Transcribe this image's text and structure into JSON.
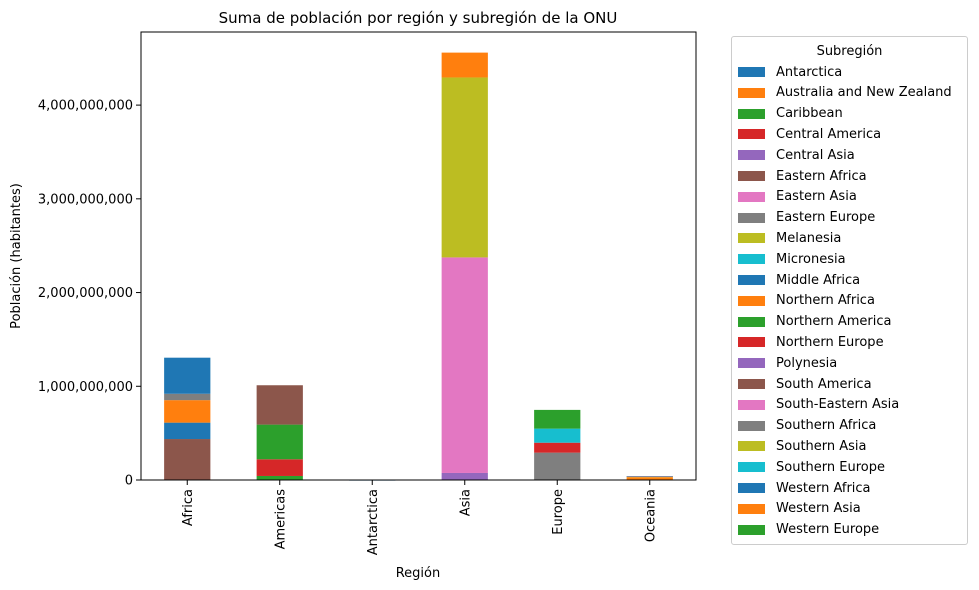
{
  "chart_data": {
    "type": "bar",
    "stacked": true,
    "title": "Suma de población por región y subregión de la ONU",
    "xlabel": "Región",
    "ylabel": "Población (habitantes)",
    "ylim": [
      0,
      4780000000
    ],
    "yticks": [
      0,
      1000000000,
      2000000000,
      3000000000,
      4000000000
    ],
    "ytick_labels": [
      "0",
      "1,000,000,000",
      "2,000,000,000",
      "3,000,000,000",
      "4,000,000,000"
    ],
    "categories": [
      "Africa",
      "Americas",
      "Antarctica",
      "Asia",
      "Europe",
      "Oceania"
    ],
    "legend_title": "Subregión",
    "legend_position": "outside-right",
    "grid": false,
    "series": [
      {
        "name": "Antarctica",
        "color": "#1f77b4",
        "values": [
          0,
          0,
          1000,
          0,
          0,
          0
        ]
      },
      {
        "name": "Australia and New Zealand",
        "color": "#ff7f0e",
        "values": [
          0,
          0,
          0,
          0,
          0,
          30000000
        ]
      },
      {
        "name": "Caribbean",
        "color": "#2ca02c",
        "values": [
          0,
          43000000,
          0,
          0,
          0,
          0
        ]
      },
      {
        "name": "Central America",
        "color": "#d62728",
        "values": [
          0,
          178000000,
          0,
          0,
          0,
          0
        ]
      },
      {
        "name": "Central Asia",
        "color": "#9467bd",
        "values": [
          0,
          0,
          0,
          75000000,
          0,
          0
        ]
      },
      {
        "name": "Eastern Africa",
        "color": "#8c564b",
        "values": [
          437000000,
          0,
          0,
          0,
          0,
          0
        ]
      },
      {
        "name": "Eastern Asia",
        "color": "#e377c2",
        "values": [
          0,
          0,
          0,
          2300000000,
          0,
          0
        ]
      },
      {
        "name": "Eastern Europe",
        "color": "#7f7f7f",
        "values": [
          0,
          0,
          0,
          0,
          292000000,
          0
        ]
      },
      {
        "name": "Melanesia",
        "color": "#bcbd22",
        "values": [
          0,
          0,
          0,
          0,
          0,
          11000000
        ]
      },
      {
        "name": "Micronesia",
        "color": "#17becf",
        "values": [
          0,
          0,
          0,
          0,
          0,
          500000
        ]
      },
      {
        "name": "Middle Africa",
        "color": "#1f77b4",
        "values": [
          175000000,
          0,
          0,
          0,
          0,
          0
        ]
      },
      {
        "name": "Northern Africa",
        "color": "#ff7f0e",
        "values": [
          240000000,
          0,
          0,
          0,
          0,
          0
        ]
      },
      {
        "name": "Northern America",
        "color": "#2ca02c",
        "values": [
          0,
          370000000,
          0,
          0,
          0,
          0
        ]
      },
      {
        "name": "Northern Europe",
        "color": "#d62728",
        "values": [
          0,
          0,
          0,
          0,
          106000000,
          0
        ]
      },
      {
        "name": "Polynesia",
        "color": "#9467bd",
        "values": [
          0,
          0,
          0,
          0,
          0,
          700000
        ]
      },
      {
        "name": "South America",
        "color": "#8c564b",
        "values": [
          0,
          420000000,
          0,
          0,
          0,
          0
        ]
      },
      {
        "name": "South-Eastern Asia",
        "color": "#e377c2",
        "values": [
          0,
          0,
          0,
          0,
          0,
          0
        ]
      },
      {
        "name": "Southern Africa",
        "color": "#7f7f7f",
        "values": [
          68000000,
          0,
          0,
          0,
          0,
          0
        ]
      },
      {
        "name": "Southern Asia",
        "color": "#bcbd22",
        "values": [
          0,
          0,
          0,
          1920000000,
          0,
          0
        ]
      },
      {
        "name": "Southern Europe",
        "color": "#17becf",
        "values": [
          0,
          0,
          0,
          0,
          150000000,
          0
        ]
      },
      {
        "name": "Western Africa",
        "color": "#1f77b4",
        "values": [
          385000000,
          0,
          0,
          0,
          0,
          0
        ]
      },
      {
        "name": "Western Asia",
        "color": "#ff7f0e",
        "values": [
          0,
          0,
          0,
          265000000,
          0,
          0
        ]
      },
      {
        "name": "Western Europe",
        "color": "#2ca02c",
        "values": [
          0,
          0,
          0,
          0,
          200000000,
          0
        ]
      }
    ]
  }
}
